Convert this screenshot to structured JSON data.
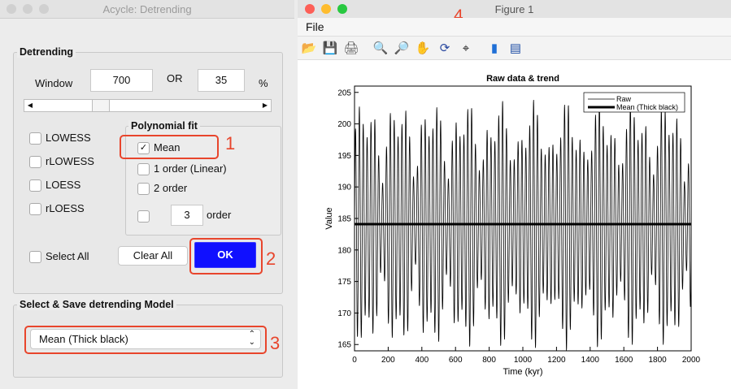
{
  "left_window": {
    "title": "Acycle: Detrending",
    "detrending": {
      "label": "Detrending",
      "window_label": "Window",
      "window_value": "700",
      "or_label": "OR",
      "percent_value": "35",
      "percent_unit": "%",
      "slider_level": 0.27,
      "methods": [
        {
          "label": "LOWESS",
          "checked": false
        },
        {
          "label": "rLOWESS",
          "checked": false
        },
        {
          "label": "LOESS",
          "checked": false
        },
        {
          "label": "rLOESS",
          "checked": false
        }
      ],
      "poly": {
        "label": "Polynomial fit",
        "options": [
          {
            "label": "Mean",
            "checked": true
          },
          {
            "label": "1 order (Linear)",
            "checked": false
          },
          {
            "label": "2 order",
            "checked": false
          }
        ],
        "custom_value": "3",
        "custom_label": "order"
      },
      "select_all_label": "Select All",
      "clear_all_label": "Clear All",
      "ok_label": "OK"
    },
    "model": {
      "label": "Select & Save detrending Model",
      "selected": "Mean (Thick black)"
    }
  },
  "annotations": [
    "1",
    "2",
    "3",
    "4"
  ],
  "right_window": {
    "title": "Figure 1",
    "menu": {
      "file": "File"
    },
    "toolbar": [
      "open-icon",
      "save-icon",
      "print-icon",
      "zoom-in-icon",
      "zoom-out-icon",
      "pan-icon",
      "rotate-icon",
      "data-cursor-icon",
      "colorbar-icon",
      "legend-icon"
    ]
  },
  "chart_data": {
    "type": "line",
    "title": "Raw data & trend",
    "xlabel": "Time (kyr)",
    "ylabel": "Value",
    "xlim": [
      0,
      2000
    ],
    "ylim": [
      164,
      206
    ],
    "xticks": [
      0,
      200,
      400,
      600,
      800,
      1000,
      1200,
      1400,
      1600,
      1800,
      2000
    ],
    "yticks": [
      165,
      170,
      175,
      180,
      185,
      190,
      195,
      200,
      205
    ],
    "legend_position": "top-right",
    "series": [
      {
        "name": "Raw",
        "style": "thin black line",
        "description_values": {
          "mean": 184,
          "min_approx": 165,
          "max_approx": 206,
          "dominant_period_kyr": 23
        }
      },
      {
        "name": "Mean (Thick black)",
        "style": "thick black line",
        "x": [
          0,
          2000
        ],
        "y": [
          184.1,
          184.1
        ]
      }
    ],
    "legend": [
      "Raw",
      "Mean (Thick black)"
    ]
  }
}
